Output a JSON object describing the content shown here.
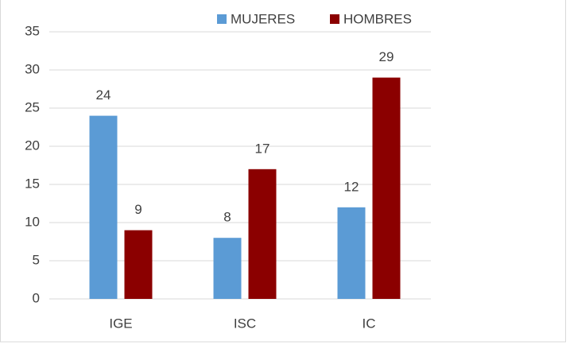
{
  "chart_data": {
    "type": "bar",
    "categories": [
      "IGE",
      "ISC",
      "IC"
    ],
    "series": [
      {
        "name": "MUJERES",
        "color": "#5b9bd5",
        "values": [
          24,
          8,
          12
        ]
      },
      {
        "name": "HOMBRES",
        "color": "#8b0000",
        "values": [
          9,
          17,
          29
        ]
      }
    ],
    "ylim": [
      0,
      35
    ],
    "yticks": [
      0,
      5,
      10,
      15,
      20,
      25,
      30,
      35
    ],
    "grid": true,
    "legend": "top"
  }
}
